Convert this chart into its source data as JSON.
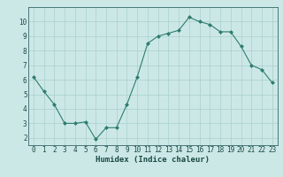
{
  "x": [
    0,
    1,
    2,
    3,
    4,
    5,
    6,
    7,
    8,
    9,
    10,
    11,
    12,
    13,
    14,
    15,
    16,
    17,
    18,
    19,
    20,
    21,
    22,
    23
  ],
  "y": [
    6.2,
    5.2,
    4.3,
    3.0,
    3.0,
    3.1,
    1.9,
    2.7,
    2.7,
    4.3,
    6.2,
    8.5,
    9.0,
    9.2,
    9.4,
    10.3,
    10.0,
    9.8,
    9.3,
    9.3,
    8.3,
    7.0,
    6.7,
    5.8
  ],
  "xlabel": "Humidex (Indice chaleur)",
  "line_color": "#2e7d6e",
  "marker": "D",
  "marker_size": 2,
  "bg_color": "#cce8e6",
  "grid_color": "#add4d0",
  "xlim_min": -0.5,
  "xlim_max": 23.5,
  "ylim_min": 1.5,
  "ylim_max": 11.0,
  "yticks": [
    2,
    3,
    4,
    5,
    6,
    7,
    8,
    9,
    10
  ],
  "xticks": [
    0,
    1,
    2,
    3,
    4,
    5,
    6,
    7,
    8,
    9,
    10,
    11,
    12,
    13,
    14,
    15,
    16,
    17,
    18,
    19,
    20,
    21,
    22,
    23
  ],
  "xlabel_fontsize": 6.5,
  "tick_fontsize": 5.5,
  "label_color": "#1a4a44",
  "tick_color": "#1a4a44",
  "spine_color": "#336666"
}
